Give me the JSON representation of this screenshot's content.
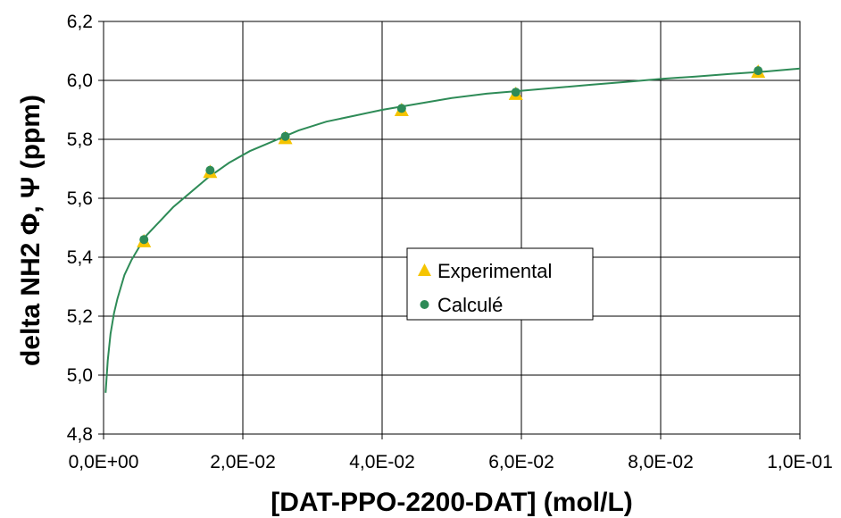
{
  "chart_data": {
    "type": "scatter",
    "title": "",
    "xlabel": "[DAT-PPO-2200-DAT] (mol/L)",
    "ylabel": "delta NH2 Φ, Ψ (ppm)",
    "xlim": [
      0,
      0.1
    ],
    "ylim": [
      4.8,
      6.2
    ],
    "grid": true,
    "legend": "center-right",
    "x_ticks": [
      "0,0E+00",
      "2,0E-02",
      "4,0E-02",
      "6,0E-02",
      "8,0E-02",
      "1,0E-01"
    ],
    "y_ticks": [
      "4,8",
      "5,0",
      "5,2",
      "5,4",
      "5,6",
      "5,8",
      "6,0",
      "6,2"
    ],
    "series": [
      {
        "name": "Experimental",
        "marker": "triangle",
        "color": "#F5C400",
        "x": [
          0.0058,
          0.0153,
          0.0261,
          0.0428,
          0.0592,
          0.094
        ],
        "y": [
          5.455,
          5.69,
          5.805,
          5.9,
          5.955,
          6.03
        ]
      },
      {
        "name": "Calculé",
        "marker": "circle",
        "color": "#2E8B57",
        "x": [
          0.0058,
          0.0153,
          0.0261,
          0.0428,
          0.0592,
          0.094
        ],
        "y": [
          5.46,
          5.695,
          5.81,
          5.905,
          5.96,
          6.033
        ]
      },
      {
        "marker": "line",
        "color": "#2E8B57",
        "x": [
          0.0003,
          0.0006,
          0.001,
          0.0015,
          0.002,
          0.003,
          0.004,
          0.005,
          0.006,
          0.008,
          0.01,
          0.012,
          0.015,
          0.018,
          0.021,
          0.024,
          0.028,
          0.032,
          0.036,
          0.04,
          0.045,
          0.05,
          0.055,
          0.06,
          0.065,
          0.07,
          0.075,
          0.08,
          0.085,
          0.09,
          0.095,
          0.1
        ],
        "y": [
          4.94,
          5.05,
          5.14,
          5.21,
          5.26,
          5.34,
          5.39,
          5.43,
          5.47,
          5.52,
          5.57,
          5.61,
          5.67,
          5.72,
          5.76,
          5.79,
          5.83,
          5.86,
          5.88,
          5.9,
          5.92,
          5.94,
          5.955,
          5.965,
          5.975,
          5.985,
          5.995,
          6.005,
          6.013,
          6.022,
          6.03,
          6.04
        ]
      }
    ]
  }
}
